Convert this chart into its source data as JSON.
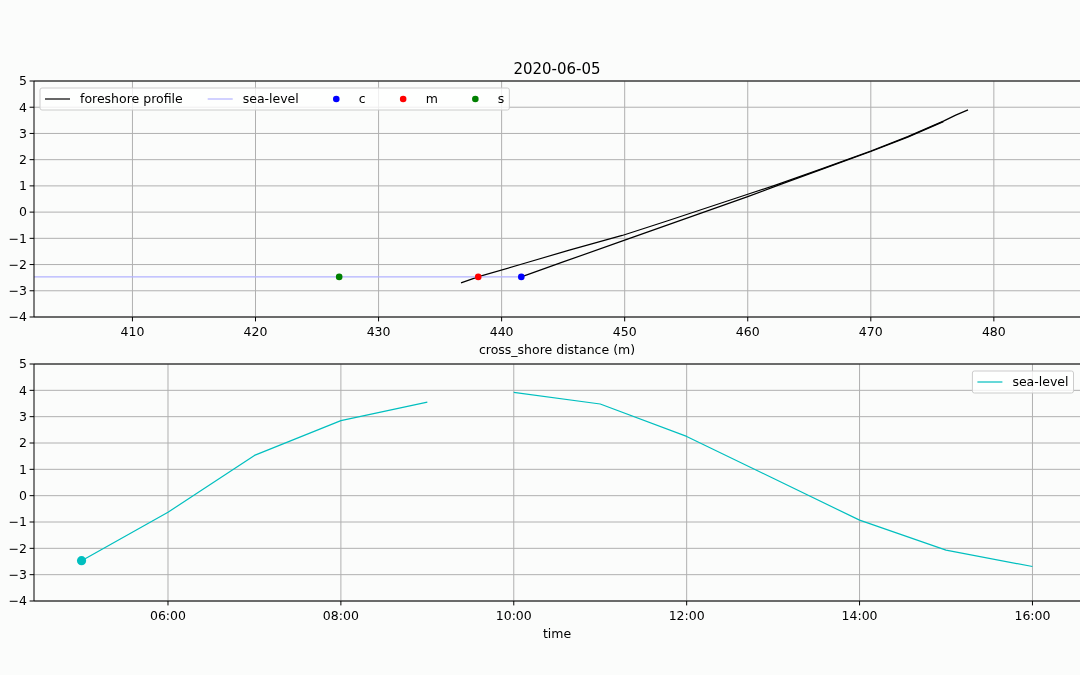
{
  "chart_data": [
    {
      "type": "line",
      "title": "2020-06-05",
      "xlabel": "cross_shore distance (m)",
      "xlim": [
        402,
        487
      ],
      "xticks": [
        410,
        420,
        430,
        440,
        450,
        460,
        470,
        480
      ],
      "ylim": [
        -4,
        5
      ],
      "yticks": [
        {
          "value": -4,
          "label": "−4"
        },
        {
          "value": -3,
          "label": "−3"
        },
        {
          "value": -2,
          "label": "−2"
        },
        {
          "value": -1,
          "label": "−1"
        },
        0,
        1,
        2,
        3,
        4,
        5
      ],
      "grid": true,
      "legend": "top left",
      "series": [
        {
          "name": "foreshore profile",
          "color": "#000000",
          "x": [
            436.7,
            438.2,
            441.8,
            445.5,
            449.8,
            453.5,
            460,
            462.2,
            466,
            470,
            473,
            475.9,
            476.9,
            477.9
          ],
          "values": [
            -2.7,
            -2.45,
            -1.96,
            -1.45,
            -0.89,
            -0.33,
            0.68,
            1.02,
            1.65,
            2.33,
            2.88,
            3.47,
            3.7,
            3.9
          ]
        },
        {
          "color": "#000000",
          "x": [
            441.6,
            445,
            450,
            455,
            460,
            462.5,
            466,
            470,
            473,
            475.9
          ],
          "values": [
            -2.47,
            -1.9,
            -1.07,
            -0.24,
            0.59,
            1.03,
            1.63,
            2.31,
            2.86,
            3.45
          ]
        },
        {
          "name": "sea-level",
          "color": "#b2b2ff",
          "x": [
            402,
            441.6
          ],
          "values": [
            -2.47,
            -2.47
          ]
        },
        {
          "name": "c",
          "type": "scatter",
          "marker": "circle",
          "color": "#0000ff",
          "x": [
            441.6
          ],
          "values": [
            -2.47
          ]
        },
        {
          "name": "m",
          "type": "scatter",
          "marker": "circle",
          "color": "#ff0000",
          "x": [
            438.1
          ],
          "values": [
            -2.47
          ]
        },
        {
          "name": "s",
          "type": "scatter",
          "marker": "circle",
          "color": "#008000",
          "x": [
            426.8
          ],
          "values": [
            -2.47
          ]
        }
      ]
    },
    {
      "type": "line",
      "xlabel": "time",
      "xlim": [
        4.45,
        16.55
      ],
      "xticks": [
        {
          "value": 6,
          "label": "06:00"
        },
        {
          "value": 8,
          "label": "08:00"
        },
        {
          "value": 10,
          "label": "10:00"
        },
        {
          "value": 12,
          "label": "12:00"
        },
        {
          "value": 14,
          "label": "14:00"
        },
        {
          "value": 16,
          "label": "16:00"
        }
      ],
      "ylim": [
        -4,
        5
      ],
      "yticks": [
        {
          "value": -4,
          "label": "−4"
        },
        {
          "value": -3,
          "label": "−3"
        },
        {
          "value": -2,
          "label": "−2"
        },
        {
          "value": -1,
          "label": "−1"
        },
        0,
        1,
        2,
        3,
        4,
        5
      ],
      "grid": true,
      "legend": "top right",
      "series": [
        {
          "name": "sea-level",
          "color": "#00bfbf",
          "x": [
            5,
            6,
            7,
            8,
            9,
            9.5,
            10,
            11,
            12,
            13,
            14,
            15,
            16
          ],
          "values": [
            -2.47,
            -0.63,
            1.53,
            2.85,
            3.55,
            null,
            3.92,
            3.48,
            2.25,
            0.66,
            -0.93,
            -2.07,
            -2.69
          ]
        },
        {
          "type": "scatter",
          "marker": "circle",
          "color": "#00bfbf",
          "x": [
            5
          ],
          "values": [
            -2.47
          ]
        }
      ]
    }
  ]
}
